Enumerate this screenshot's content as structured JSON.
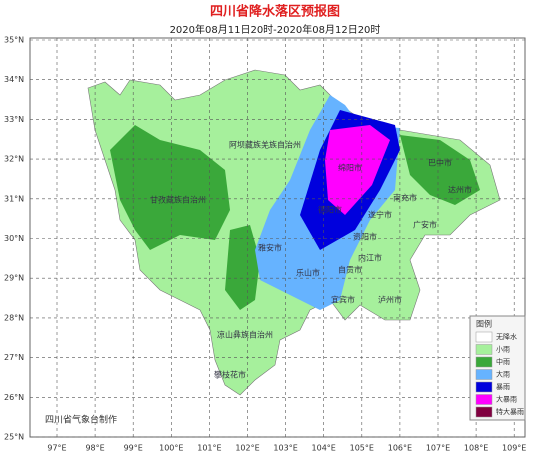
{
  "title": "四川省降水落区预报图",
  "subtitle": "2020年08月11日20时-2020年08月12日20时",
  "credit": "四川省气象台制作",
  "map": {
    "lon_ticks": [
      {
        "value": 97,
        "label": "97°E"
      },
      {
        "value": 98,
        "label": "98°E"
      },
      {
        "value": 99,
        "label": "99°E"
      },
      {
        "value": 100,
        "label": "100°E"
      },
      {
        "value": 101,
        "label": "101°E"
      },
      {
        "value": 102,
        "label": "102°E"
      },
      {
        "value": 103,
        "label": "103°E"
      },
      {
        "value": 104,
        "label": "104°E"
      },
      {
        "value": 105,
        "label": "105°E"
      },
      {
        "value": 106,
        "label": "106°E"
      },
      {
        "value": 107,
        "label": "107°E"
      },
      {
        "value": 108,
        "label": "108°E"
      },
      {
        "value": 109,
        "label": "109°E"
      }
    ],
    "lat_ticks": [
      {
        "value": 35,
        "label": "35°N"
      },
      {
        "value": 34,
        "label": "34°N"
      },
      {
        "value": 33,
        "label": "33°N"
      },
      {
        "value": 32,
        "label": "32°N"
      },
      {
        "value": 31,
        "label": "31°N"
      },
      {
        "value": 30,
        "label": "30°N"
      },
      {
        "value": 29,
        "label": "29°N"
      },
      {
        "value": 28,
        "label": "28°N"
      },
      {
        "value": 27,
        "label": "27°N"
      },
      {
        "value": 26,
        "label": "26°N"
      },
      {
        "value": 25,
        "label": "25°N"
      }
    ],
    "regions": [
      "阿坝藏族羌族自治州",
      "甘孜藏族自治州",
      "绵阳市",
      "德阳市",
      "巴中市",
      "达州市",
      "南充市",
      "遂宁市",
      "广安市",
      "雅安市",
      "资阳市",
      "乐山市",
      "内江市",
      "自贡市",
      "宜宾市",
      "泸州市",
      "凉山彝族自治州",
      "攀枝花市"
    ]
  },
  "legend": {
    "title": "图例",
    "items": [
      {
        "label": "无降水",
        "color": "#ffffff"
      },
      {
        "label": "小雨",
        "color": "#a6f09c"
      },
      {
        "label": "中雨",
        "color": "#3aa83a"
      },
      {
        "label": "大雨",
        "color": "#66b3ff"
      },
      {
        "label": "暴雨",
        "color": "#0000dd"
      },
      {
        "label": "大暴雨",
        "color": "#ff00ff"
      },
      {
        "label": "特大暴雨",
        "color": "#800040"
      }
    ]
  }
}
